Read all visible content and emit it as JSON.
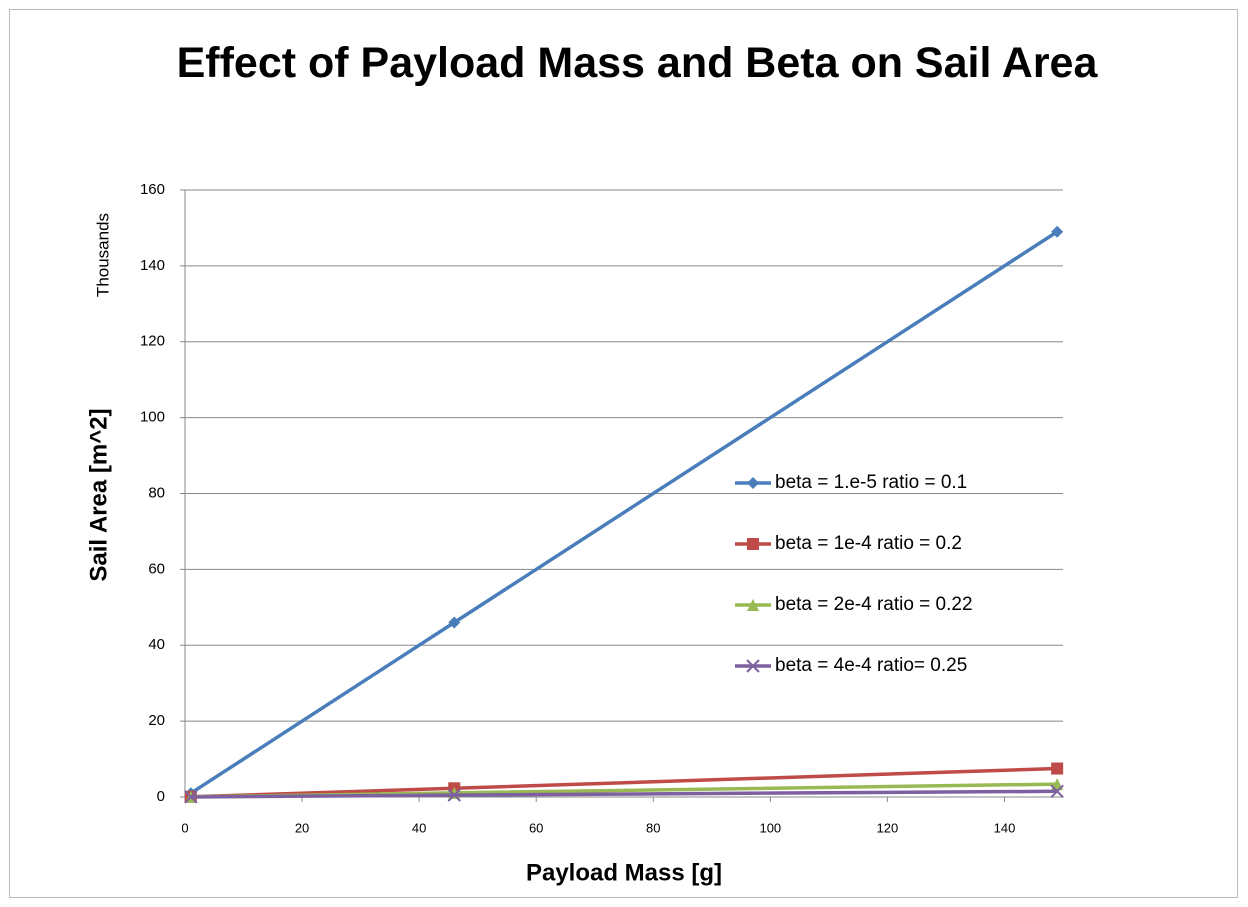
{
  "chart_data": {
    "type": "line",
    "title": "Effect of Payload Mass and Beta on Sail Area",
    "xlabel": "Payload Mass [g]",
    "ylabel": "Sail Area [m^2]",
    "yunit": "Thousands",
    "xlim": [
      0,
      150
    ],
    "xticks": [
      0,
      20,
      40,
      60,
      80,
      100,
      120,
      140
    ],
    "ylim": [
      0,
      160
    ],
    "yticks": [
      0,
      20,
      40,
      60,
      80,
      100,
      120,
      140,
      160
    ],
    "grid": true,
    "legend": "right",
    "x": [
      1,
      46,
      149
    ],
    "series": [
      {
        "name": "beta = 1.e-5 ratio = 0.1",
        "color": "#4a7ebb",
        "marker": "diamond",
        "values": [
          1,
          46,
          149
        ]
      },
      {
        "name": "beta = 1e-4 ratio = 0.2",
        "color": "#be4b48",
        "marker": "square",
        "values": [
          0.05,
          2.3,
          7.5
        ]
      },
      {
        "name": "beta = 2e-4 ratio = 0.22",
        "color": "#98b954",
        "marker": "triangle",
        "values": [
          0.02,
          1.1,
          3.4
        ]
      },
      {
        "name": "beta = 4e-4 ratio= 0.25",
        "color": "#7d60a0",
        "marker": "x",
        "values": [
          0.01,
          0.5,
          1.5
        ]
      }
    ]
  }
}
